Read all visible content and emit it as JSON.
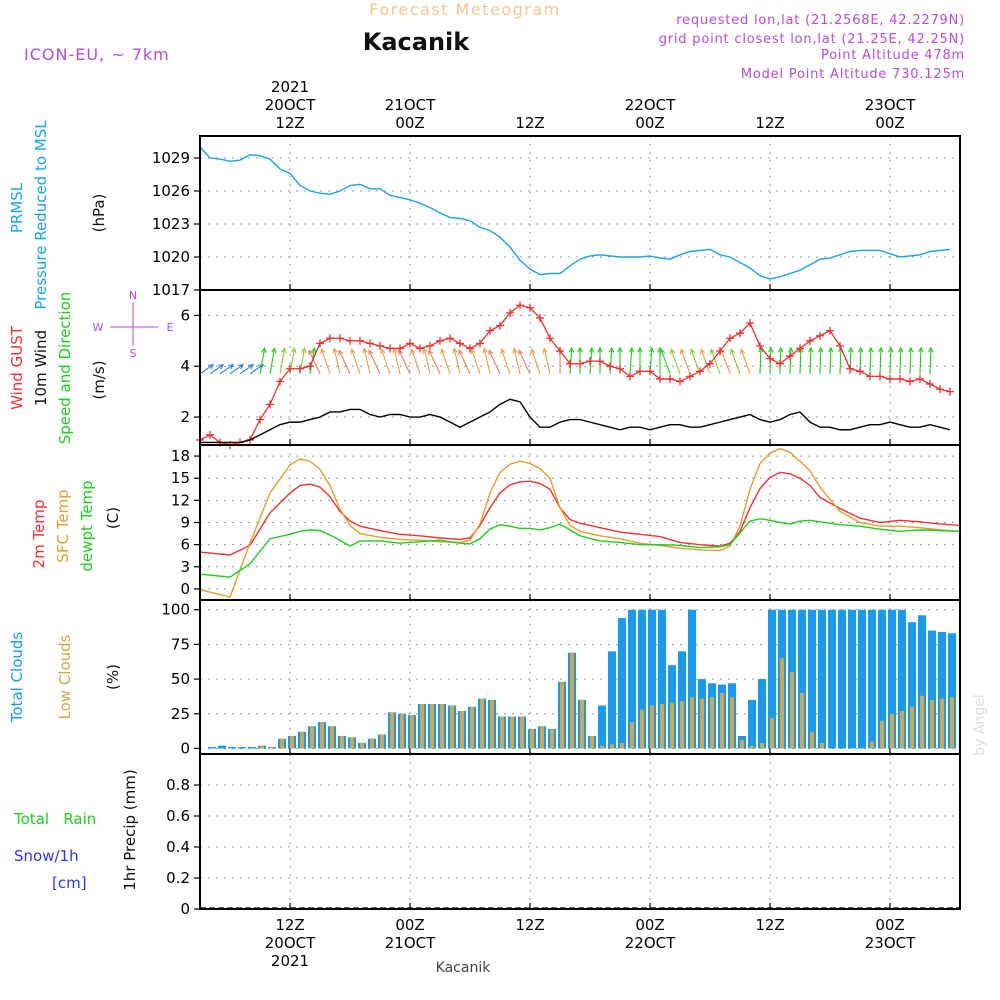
{
  "header": {
    "product": "Forecast Meteogram",
    "location": "Kacanik",
    "model": "ICON-EU,  ~ 7km",
    "requested": "requested lon,lat (21.2568E, 42.2279N)",
    "grid_point": "grid point closest lon,lat (21.25E, 42.25N)",
    "point_altitude": "Point Altitude 478m",
    "model_altitude": "Model Point Altitude 730.125m",
    "footer_location": "Kacanik",
    "watermark": "by Angel"
  },
  "colors": {
    "pressure": "#1aa3e8",
    "gust": "#ee3333",
    "wind": "#000000",
    "wind_arrows": "#22cc22",
    "temp2m": "#ee3333",
    "sfc": "#e0a030",
    "dew": "#22cc22",
    "total_cloud": "#189bef",
    "low_cloud": "#d2a64a",
    "rain": "#22cc22",
    "snow": "#3333ee",
    "title_orange": "#f0c890",
    "purple": "#b44cdc"
  },
  "time_axis": {
    "top_ticks": [
      {
        "t": 9,
        "lines": [
          "2021",
          "20OCT",
          "12Z"
        ]
      },
      {
        "t": 21,
        "lines": [
          "21OCT",
          "00Z"
        ]
      },
      {
        "t": 33,
        "lines": [
          "12Z"
        ]
      },
      {
        "t": 45,
        "lines": [
          "22OCT",
          "00Z"
        ]
      },
      {
        "t": 57,
        "lines": [
          "12Z"
        ]
      },
      {
        "t": 69,
        "lines": [
          "23OCT",
          "00Z"
        ]
      }
    ],
    "bottom_ticks": [
      {
        "t": 9,
        "lines": [
          "12Z",
          "20OCT",
          "2021"
        ]
      },
      {
        "t": 21,
        "lines": [
          "00Z",
          "21OCT"
        ]
      },
      {
        "t": 33,
        "lines": [
          "12Z"
        ]
      },
      {
        "t": 45,
        "lines": [
          "00Z",
          "22OCT"
        ]
      },
      {
        "t": 57,
        "lines": [
          "12Z"
        ]
      },
      {
        "t": 69,
        "lines": [
          "00Z",
          "23OCT"
        ]
      }
    ]
  },
  "panels": {
    "pressure": {
      "labels": [
        "PRMSL",
        "Pressure Reduced to MSL"
      ],
      "unit": "(hPa)"
    },
    "wind": {
      "labels": [
        "Wind GUST",
        "10m Wind",
        "Speed and Direction"
      ],
      "unit": "(m/s)",
      "compass": {
        "n": "N",
        "s": "S",
        "e": "E",
        "w": "W"
      }
    },
    "temp": {
      "labels": [
        "2m Temp",
        "SFC Temp",
        "dewpt Temp"
      ],
      "unit": "(C)"
    },
    "cloud": {
      "labels": [
        "Total Clouds",
        "Low Clouds"
      ],
      "unit": "(%)"
    },
    "precip": {
      "labels": [
        "Total   Rain",
        "Snow/1h",
        "[cm]"
      ],
      "unit": "1hr Precip (mm)"
    }
  },
  "chart_data": [
    {
      "type": "line",
      "title": "PRMSL Pressure Reduced to MSL",
      "ylabel": "hPa",
      "x_range": [
        0,
        76
      ],
      "ylim": [
        1017,
        1031
      ],
      "yticks": [
        1017,
        1020,
        1023,
        1026,
        1029
      ],
      "x": [
        0,
        1,
        2,
        3,
        4,
        5,
        6,
        7,
        8,
        9,
        10,
        11,
        12,
        13,
        14,
        15,
        16,
        17,
        18,
        19,
        20,
        21,
        22,
        23,
        24,
        25,
        26,
        27,
        28,
        29,
        30,
        31,
        32,
        33,
        34,
        35,
        36,
        37,
        38,
        39,
        40,
        41,
        42,
        43,
        44,
        45,
        46,
        47,
        48,
        49,
        50,
        51,
        52,
        53,
        54,
        55,
        56,
        57,
        58,
        59,
        60,
        61,
        62,
        63,
        64,
        65,
        66,
        67,
        68,
        69,
        70,
        71,
        72,
        73,
        74,
        75
      ],
      "series": [
        {
          "name": "PRMSL",
          "values": [
            1030.0,
            1029.0,
            1028.9,
            1028.7,
            1028.8,
            1029.3,
            1029.2,
            1028.9,
            1028.0,
            1027.6,
            1026.5,
            1026.0,
            1025.8,
            1025.7,
            1026.0,
            1026.5,
            1026.6,
            1026.2,
            1026.2,
            1025.6,
            1025.4,
            1025.2,
            1024.9,
            1024.5,
            1024.0,
            1023.6,
            1023.5,
            1023.3,
            1022.7,
            1022.4,
            1021.8,
            1020.9,
            1019.7,
            1018.9,
            1018.4,
            1018.5,
            1018.5,
            1019.2,
            1019.8,
            1020.1,
            1020.2,
            1020.1,
            1020.0,
            1020.0,
            1020.0,
            1020.1,
            1019.9,
            1019.8,
            1020.2,
            1020.5,
            1020.6,
            1020.7,
            1020.2,
            1020.0,
            1019.5,
            1019.0,
            1018.3,
            1018.0,
            1018.2,
            1018.5,
            1018.8,
            1019.3,
            1019.8,
            1019.9,
            1020.2,
            1020.5,
            1020.6,
            1020.6,
            1020.6,
            1020.3,
            1020.0,
            1020.1,
            1020.2,
            1020.5,
            1020.6,
            1020.7
          ]
        }
      ]
    },
    {
      "type": "line",
      "title": "Wind GUST / 10m Wind Speed and Direction",
      "ylabel": "m/s",
      "x_range": [
        0,
        76
      ],
      "ylim": [
        0.9,
        7.0
      ],
      "yticks": [
        2,
        4,
        6
      ],
      "x": [
        0,
        1,
        2,
        3,
        4,
        5,
        6,
        7,
        8,
        9,
        10,
        11,
        12,
        13,
        14,
        15,
        16,
        17,
        18,
        19,
        20,
        21,
        22,
        23,
        24,
        25,
        26,
        27,
        28,
        29,
        30,
        31,
        32,
        33,
        34,
        35,
        36,
        37,
        38,
        39,
        40,
        41,
        42,
        43,
        44,
        45,
        46,
        47,
        48,
        49,
        50,
        51,
        52,
        53,
        54,
        55,
        56,
        57,
        58,
        59,
        60,
        61,
        62,
        63,
        64,
        65,
        66,
        67,
        68,
        69,
        70,
        71,
        72,
        73,
        74,
        75
      ],
      "series": [
        {
          "name": "Wind GUST",
          "values": [
            1.1,
            1.3,
            1.0,
            0.9,
            1.0,
            1.1,
            1.9,
            2.5,
            3.4,
            3.9,
            3.9,
            4.0,
            4.9,
            5.1,
            5.1,
            5.0,
            5.0,
            4.9,
            4.8,
            4.7,
            4.7,
            4.9,
            4.7,
            4.8,
            5.0,
            5.1,
            4.9,
            4.7,
            4.9,
            5.4,
            5.6,
            6.1,
            6.4,
            6.3,
            5.9,
            5.1,
            4.6,
            4.1,
            4.1,
            4.2,
            4.2,
            4.0,
            3.9,
            3.6,
            3.8,
            3.8,
            3.5,
            3.5,
            3.4,
            3.6,
            3.8,
            4.1,
            4.6,
            5.1,
            5.3,
            5.7,
            4.8,
            4.3,
            4.1,
            4.4,
            4.7,
            5.0,
            5.2,
            5.4,
            4.8,
            3.9,
            3.8,
            3.6,
            3.6,
            3.5,
            3.5,
            3.4,
            3.5,
            3.3,
            3.1,
            3.0
          ]
        },
        {
          "name": "10m Wind",
          "values": [
            1.0,
            1.0,
            1.0,
            1.0,
            1.0,
            1.1,
            1.3,
            1.5,
            1.7,
            1.8,
            1.8,
            1.9,
            2.0,
            2.2,
            2.2,
            2.3,
            2.3,
            2.1,
            2.0,
            2.1,
            2.1,
            2.0,
            2.0,
            2.1,
            2.0,
            1.8,
            1.6,
            1.8,
            2.0,
            2.2,
            2.5,
            2.7,
            2.6,
            2.0,
            1.6,
            1.6,
            1.8,
            1.9,
            1.9,
            1.8,
            1.7,
            1.6,
            1.5,
            1.6,
            1.6,
            1.5,
            1.6,
            1.7,
            1.7,
            1.6,
            1.6,
            1.7,
            1.8,
            1.9,
            2.0,
            2.1,
            1.9,
            1.8,
            1.9,
            2.1,
            2.2,
            1.8,
            1.6,
            1.6,
            1.5,
            1.5,
            1.6,
            1.7,
            1.7,
            1.8,
            1.7,
            1.6,
            1.6,
            1.7,
            1.6,
            1.5
          ]
        }
      ]
    },
    {
      "type": "line",
      "title": "2m Temp / SFC Temp / dewpt Temp",
      "ylabel": "C",
      "x_range": [
        0,
        76
      ],
      "ylim": [
        -1.5,
        19.5
      ],
      "yticks": [
        0,
        3,
        6,
        9,
        12,
        15,
        18
      ],
      "x": [
        0,
        3,
        5,
        7,
        9,
        10,
        11,
        12,
        13,
        14,
        15,
        16,
        18,
        20,
        22,
        24,
        26,
        27,
        28,
        29,
        30,
        31,
        32,
        33,
        34,
        35,
        36,
        37,
        38,
        40,
        42,
        44,
        46,
        48,
        50,
        52,
        53,
        54,
        55,
        56,
        57,
        58,
        59,
        60,
        61,
        62,
        64,
        66,
        68,
        70,
        72,
        74,
        76
      ],
      "series": [
        {
          "name": "2m Temp",
          "values": [
            5.0,
            4.6,
            5.9,
            10.3,
            13.0,
            14.0,
            14.2,
            13.8,
            12.5,
            10.5,
            9.2,
            8.5,
            7.9,
            7.4,
            7.2,
            6.9,
            6.7,
            6.9,
            8.6,
            11.0,
            13.0,
            14.1,
            14.5,
            14.6,
            14.3,
            13.5,
            11.0,
            9.4,
            8.9,
            8.3,
            7.7,
            7.4,
            7.1,
            6.3,
            6.0,
            5.8,
            6.2,
            7.8,
            11.0,
            13.6,
            15.1,
            15.8,
            15.6,
            15.0,
            14.0,
            12.4,
            10.9,
            9.6,
            9.0,
            9.3,
            9.1,
            8.8,
            8.6
          ]
        },
        {
          "name": "SFC Temp",
          "values": [
            -0.1,
            -1.1,
            6.2,
            13.0,
            16.8,
            17.6,
            17.3,
            16.2,
            14.0,
            10.8,
            8.6,
            7.5,
            7.0,
            6.7,
            6.6,
            6.4,
            6.3,
            6.6,
            8.8,
            13.0,
            15.8,
            16.9,
            17.3,
            17.0,
            16.3,
            15.0,
            11.0,
            8.6,
            7.8,
            7.2,
            6.8,
            6.2,
            5.9,
            5.5,
            5.3,
            5.2,
            5.8,
            8.5,
            13.5,
            17.0,
            18.4,
            19.0,
            18.5,
            17.3,
            16.0,
            13.8,
            10.5,
            9.0,
            8.5,
            8.5,
            8.3,
            8.0,
            7.8
          ]
        },
        {
          "name": "dewpt Temp",
          "values": [
            2.0,
            1.6,
            3.4,
            6.8,
            7.4,
            7.8,
            8.0,
            7.9,
            7.3,
            6.6,
            5.8,
            6.5,
            6.5,
            6.2,
            6.4,
            6.6,
            6.2,
            6.1,
            6.8,
            8.1,
            8.7,
            8.5,
            8.2,
            8.2,
            8.0,
            8.3,
            8.8,
            8.0,
            7.2,
            6.5,
            6.3,
            6.0,
            6.0,
            5.9,
            5.6,
            5.7,
            6.0,
            7.6,
            9.2,
            9.5,
            9.3,
            9.0,
            8.8,
            9.2,
            9.3,
            9.1,
            8.7,
            8.5,
            8.1,
            7.8,
            8.0,
            7.9,
            7.8
          ]
        }
      ]
    },
    {
      "type": "bar",
      "title": "Total Clouds / Low Clouds",
      "ylabel": "%",
      "x_range": [
        0,
        76
      ],
      "ylim": [
        -4,
        107
      ],
      "yticks": [
        0,
        25,
        50,
        75,
        100
      ],
      "x": [
        0,
        1,
        2,
        3,
        4,
        5,
        6,
        7,
        8,
        9,
        10,
        11,
        12,
        13,
        14,
        15,
        16,
        17,
        18,
        19,
        20,
        21,
        22,
        23,
        24,
        25,
        26,
        27,
        28,
        29,
        30,
        31,
        32,
        33,
        34,
        35,
        36,
        37,
        38,
        39,
        40,
        41,
        42,
        43,
        44,
        45,
        46,
        47,
        48,
        49,
        50,
        51,
        52,
        53,
        54,
        55,
        56,
        57,
        58,
        59,
        60,
        61,
        62,
        63,
        64,
        65,
        66,
        67,
        68,
        69,
        70,
        71,
        72,
        73,
        74,
        75
      ],
      "series": [
        {
          "name": "Total Clouds",
          "values": [
            0,
            1,
            2,
            1,
            1,
            1,
            2,
            1,
            7,
            9,
            12,
            16,
            19,
            16,
            9,
            8,
            4,
            7,
            10,
            26,
            25,
            24,
            32,
            32,
            32,
            31,
            27,
            30,
            36,
            35,
            23,
            23,
            23,
            14,
            16,
            14,
            48,
            69,
            35,
            9,
            31,
            70,
            94,
            100,
            100,
            100,
            100,
            60,
            70,
            100,
            50,
            47,
            46,
            47,
            9,
            35,
            50,
            100,
            100,
            100,
            100,
            100,
            100,
            100,
            100,
            100,
            100,
            100,
            100,
            100,
            100,
            91,
            96,
            85,
            84,
            83
          ]
        },
        {
          "name": "Low Clouds",
          "values": [
            0,
            0,
            0,
            0,
            0,
            0,
            2,
            1,
            7,
            9,
            12,
            16,
            19,
            16,
            9,
            8,
            4,
            7,
            10,
            26,
            25,
            24,
            32,
            32,
            32,
            31,
            27,
            30,
            36,
            35,
            23,
            23,
            23,
            14,
            16,
            14,
            48,
            69,
            35,
            9,
            2,
            3,
            4,
            19,
            28,
            31,
            32,
            33,
            34,
            37,
            36,
            37,
            40,
            37,
            6,
            2,
            4,
            22,
            65,
            55,
            40,
            12,
            4,
            0,
            0,
            0,
            0,
            5,
            20,
            25,
            27,
            30,
            38,
            35,
            36,
            37
          ]
        }
      ]
    },
    {
      "type": "bar",
      "title": "Total Rain / Snow 1hr Precip",
      "ylabel": "1hr Precip (mm)",
      "x_range": [
        0,
        76
      ],
      "ylim": [
        0,
        1.0
      ],
      "yticks": [
        0,
        0.2,
        0.4,
        0.6,
        0.8
      ],
      "series": [
        {
          "name": "Total Rain",
          "values": []
        },
        {
          "name": "Snow/1h",
          "values": []
        }
      ]
    }
  ]
}
